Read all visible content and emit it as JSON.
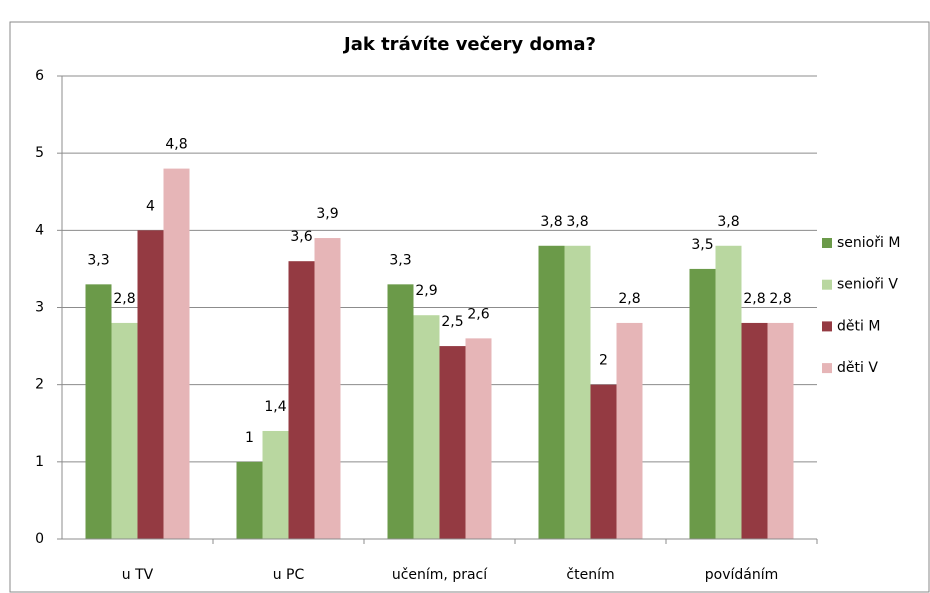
{
  "chart_data": {
    "type": "bar",
    "title": "Jak trávíte večery doma?",
    "categories": [
      "u TV",
      "u PC",
      "učením, prací",
      "čtením",
      "povídáním"
    ],
    "series": [
      {
        "name": "senioři M",
        "color": "#6b9a49",
        "values": [
          3.3,
          1,
          3.3,
          3.8,
          3.5
        ],
        "value_labels": [
          "3,3",
          "1",
          "3,3",
          "3,8",
          "3,5"
        ]
      },
      {
        "name": "senioři V",
        "color": "#b9d7a0",
        "values": [
          2.8,
          1.4,
          2.9,
          3.8,
          3.8
        ],
        "value_labels": [
          "2,8",
          "1,4",
          "2,9",
          "3,8",
          "3,8"
        ]
      },
      {
        "name": "děti M",
        "color": "#943a42",
        "values": [
          4,
          3.6,
          2.5,
          2,
          2.8
        ],
        "value_labels": [
          "4",
          "3,6",
          "2,5",
          "2",
          "2,8"
        ]
      },
      {
        "name": "děti V",
        "color": "#e6b5b7",
        "values": [
          4.8,
          3.9,
          2.6,
          2.8,
          2.8
        ],
        "value_labels": [
          "4,8",
          "3,9",
          "2,6",
          "2,8",
          "2,8"
        ]
      }
    ],
    "ylim": [
      0,
      6
    ],
    "yticks": [
      0,
      1,
      2,
      3,
      4,
      5,
      6
    ],
    "grid": true,
    "legend": "right"
  }
}
